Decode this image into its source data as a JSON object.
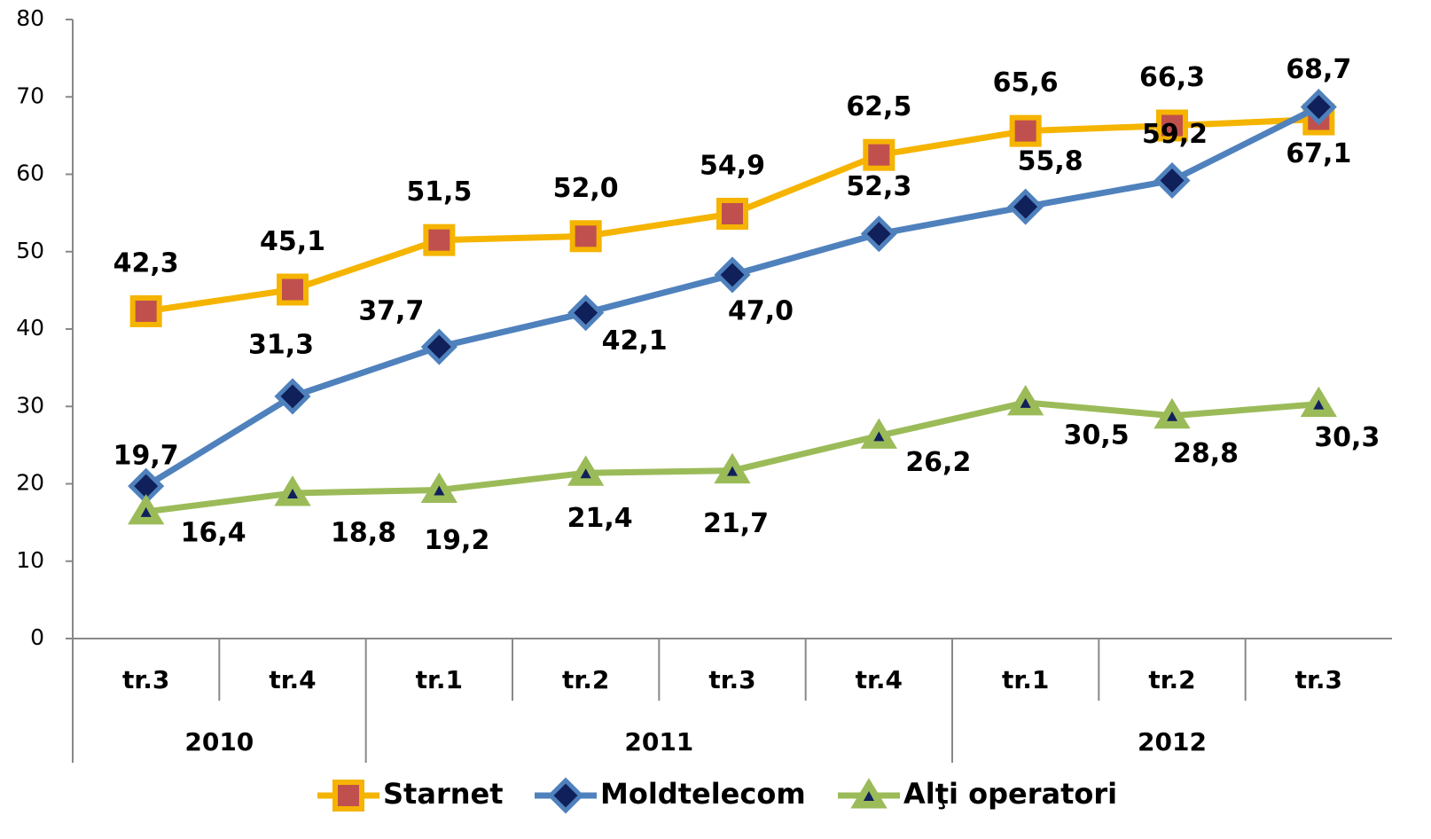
{
  "chart_data": {
    "type": "line",
    "categories": [
      "tr.3",
      "tr.4",
      "tr.1",
      "tr.2",
      "tr.3",
      "tr.4",
      "tr.1",
      "tr.2",
      "tr.3"
    ],
    "groups": [
      {
        "label": "2010",
        "span": 2
      },
      {
        "label": "2011",
        "span": 4
      },
      {
        "label": "2012",
        "span": 3
      }
    ],
    "ylim": [
      0,
      80
    ],
    "yticks": [
      0,
      10,
      20,
      30,
      40,
      50,
      60,
      70,
      80
    ],
    "series": [
      {
        "name": "Starnet",
        "color": "#f5b400",
        "marker_color": "#c0504d",
        "marker": "square",
        "values": [
          42.3,
          45.1,
          51.5,
          52.0,
          54.9,
          62.5,
          65.6,
          66.3,
          67.1
        ],
        "value_labels": [
          "42,3",
          "45,1",
          "51,5",
          "52,0",
          "54,9",
          "62,5",
          "65,6",
          "66,3",
          "67,1"
        ]
      },
      {
        "name": "Moldtelecom",
        "color": "#4f81bd",
        "marker_color": "#10205a",
        "marker": "diamond",
        "values": [
          19.7,
          31.3,
          37.7,
          42.1,
          47.0,
          52.3,
          55.8,
          59.2,
          68.7
        ],
        "value_labels": [
          "19,7",
          "31,3",
          "37,7",
          "42,1",
          "47,0",
          "52,3",
          "55,8",
          "59,2",
          "68,7"
        ]
      },
      {
        "name": "Alţi operatori",
        "color": "#9bbb59",
        "marker_color": "#10205a",
        "marker": "triangle",
        "values": [
          16.4,
          18.8,
          19.2,
          21.4,
          21.7,
          26.2,
          30.5,
          28.8,
          30.3
        ],
        "value_labels": [
          "16,4",
          "18,8",
          "19,2",
          "21,4",
          "21,7",
          "26,2",
          "30,5",
          "28,8",
          "30,3"
        ]
      }
    ],
    "legend": "bottom"
  }
}
